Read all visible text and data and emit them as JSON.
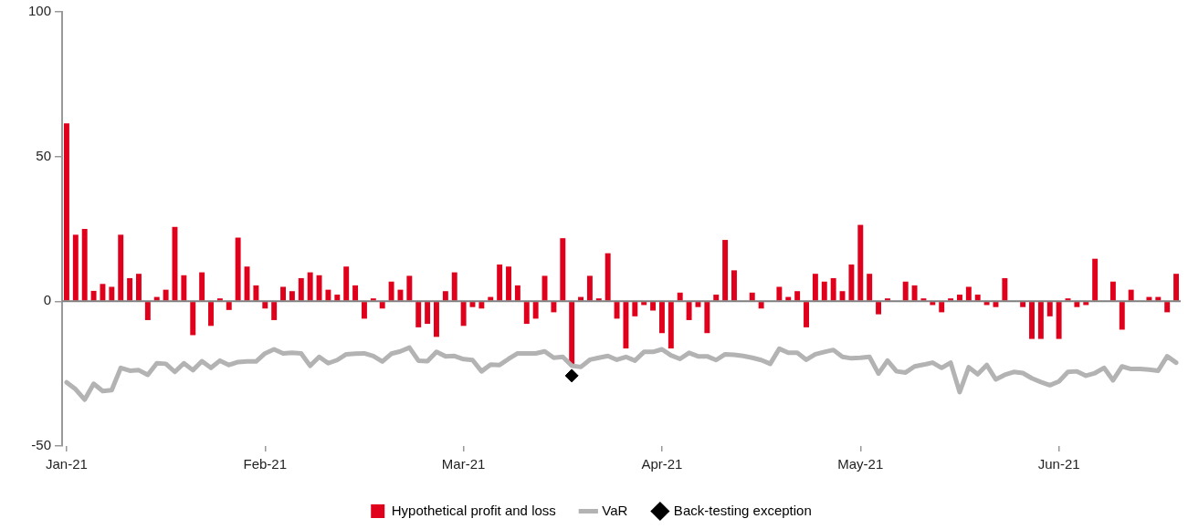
{
  "chart_data": {
    "type": "bar",
    "categories": [
      "Jan-21",
      null,
      null,
      null,
      null,
      null,
      null,
      null,
      null,
      null,
      null,
      null,
      null,
      null,
      null,
      null,
      null,
      null,
      null,
      null,
      null,
      null,
      "Feb-21",
      null,
      null,
      null,
      null,
      null,
      null,
      null,
      null,
      null,
      null,
      null,
      null,
      null,
      null,
      null,
      null,
      null,
      null,
      null,
      null,
      null,
      "Mar-21",
      null,
      null,
      null,
      null,
      null,
      null,
      null,
      null,
      null,
      null,
      null,
      null,
      null,
      null,
      null,
      null,
      null,
      null,
      null,
      null,
      null,
      "Apr-21",
      null,
      null,
      null,
      null,
      null,
      null,
      null,
      null,
      null,
      null,
      null,
      null,
      null,
      null,
      null,
      null,
      null,
      null,
      null,
      null,
      null,
      "May-21",
      null,
      null,
      null,
      null,
      null,
      null,
      null,
      null,
      null,
      null,
      null,
      null,
      null,
      null,
      null,
      null,
      null,
      null,
      null,
      null,
      null,
      "Jun-21",
      null,
      null,
      null,
      null,
      null,
      null,
      null,
      null,
      null,
      null,
      null,
      null,
      null
    ],
    "series": [
      {
        "name": "Hypothetical profit and loss",
        "color": "#e0001b",
        "values": [
          61.5,
          23,
          25,
          3.6,
          6,
          5,
          23,
          8,
          9.5,
          -6.5,
          1.5,
          4,
          25.7,
          9,
          -11.7,
          10,
          -8.5,
          1,
          -3,
          22,
          12,
          5.5,
          -2.5,
          -6.5,
          5,
          3.5,
          8,
          10,
          9,
          4,
          2.3,
          12,
          5.5,
          -6,
          1,
          -2.5,
          6.8,
          4,
          8.8,
          -9,
          -7.8,
          -12.3,
          3.5,
          10,
          -8.5,
          -2,
          -2.5,
          1.5,
          12.7,
          12,
          5.5,
          -7.8,
          -6,
          8.8,
          -3.8,
          21.8,
          -22,
          1.5,
          8.8,
          1,
          16.6,
          -6,
          -16.3,
          -5.2,
          -1.3,
          -3.2,
          -11,
          -16.3,
          3,
          -6.5,
          -2,
          -11,
          2.3,
          21.2,
          10.7,
          0,
          3,
          -2.5,
          0,
          5,
          1.5,
          3.5,
          -9,
          9.5,
          6.8,
          8,
          3.5,
          12.7,
          26.4,
          9.5,
          -4.5,
          1,
          0,
          6.8,
          5.5,
          1,
          -1.3,
          -3.8,
          1,
          2.3,
          5,
          2.3,
          -1.3,
          -2,
          8,
          0,
          -2,
          -13,
          -13,
          -5.2,
          -13,
          1,
          -2,
          -1.3,
          14.7,
          0,
          6.8,
          -9.8,
          4,
          0,
          1.5,
          1.5,
          -3.8,
          9.5
        ]
      },
      {
        "name": "VaR",
        "type": "line",
        "color": "#b3b3b3",
        "marker": "none",
        "values": [
          -28,
          -30.4,
          -34,
          -28.5,
          -31,
          -30.7,
          -23,
          -24,
          -23.8,
          -25.4,
          -21.4,
          -21.6,
          -24.4,
          -21.4,
          -23.8,
          -20.7,
          -23,
          -20.5,
          -22,
          -21,
          -20.8,
          -20.8,
          -18,
          -16.6,
          -18,
          -17.8,
          -18,
          -22.3,
          -19.2,
          -21.4,
          -20.3,
          -18.3,
          -18.1,
          -18,
          -18.9,
          -20.8,
          -18.1,
          -17.3,
          -16,
          -20.5,
          -20.7,
          -17.5,
          -19,
          -18.9,
          -20,
          -20.3,
          -24.2,
          -21.9,
          -22,
          -19.9,
          -18,
          -18,
          -18,
          -17.3,
          -19.5,
          -19.2,
          -22.3,
          -22.7,
          -20.2,
          -19.5,
          -18.9,
          -20.2,
          -19.2,
          -20.5,
          -17.5,
          -17.5,
          -16.6,
          -18.7,
          -19.9,
          -17.8,
          -19,
          -19,
          -20.3,
          -18.3,
          -18.5,
          -18.9,
          -19.5,
          -20.3,
          -21.6,
          -16.4,
          -17.8,
          -17.8,
          -20.2,
          -18.3,
          -17.5,
          -16.8,
          -19.2,
          -19.7,
          -19.5,
          -19.2,
          -25,
          -20.5,
          -24.2,
          -24.6,
          -22.5,
          -21.9,
          -21.2,
          -23,
          -21.2,
          -31.4,
          -22.8,
          -25.2,
          -22,
          -27,
          -25.4,
          -24.4,
          -24.8,
          -26.6,
          -27.9,
          -29,
          -27.7,
          -24.4,
          -24.2,
          -25.7,
          -24.8,
          -23,
          -27.3,
          -22.5,
          -23.4,
          -23.4,
          -23.6,
          -24,
          -19,
          -21.2
        ]
      },
      {
        "name": "Back-testing exception",
        "type": "scatter",
        "color": "#000000",
        "marker": "diamond",
        "values": [
          null,
          null,
          null,
          null,
          null,
          null,
          null,
          null,
          null,
          null,
          null,
          null,
          null,
          null,
          null,
          null,
          null,
          null,
          null,
          null,
          null,
          null,
          null,
          null,
          null,
          null,
          null,
          null,
          null,
          null,
          null,
          null,
          null,
          null,
          null,
          null,
          null,
          null,
          null,
          null,
          null,
          null,
          null,
          null,
          null,
          null,
          null,
          null,
          null,
          null,
          null,
          null,
          null,
          null,
          null,
          null,
          -25.7,
          null,
          null,
          null,
          null,
          null,
          null,
          null,
          null,
          null,
          null,
          null,
          null,
          null,
          null,
          null,
          null,
          null,
          null,
          null,
          null,
          null,
          null,
          null,
          null,
          null,
          null,
          null,
          null,
          null,
          null,
          null,
          null,
          null,
          null,
          null,
          null,
          null,
          null,
          null,
          null,
          null,
          null,
          null,
          null,
          null,
          null,
          null,
          null,
          null,
          null,
          null,
          null,
          null,
          null,
          null,
          null,
          null,
          null,
          null,
          null,
          null,
          null,
          null,
          null,
          null,
          null,
          null
        ]
      }
    ],
    "ylim": [
      -50,
      100
    ],
    "yticks": [
      -50,
      0,
      50,
      100
    ],
    "grid": false,
    "legend": "bottom",
    "ref_lines": [
      {
        "axis": "y",
        "value": 0,
        "color": "#7f7f7f"
      }
    ]
  }
}
